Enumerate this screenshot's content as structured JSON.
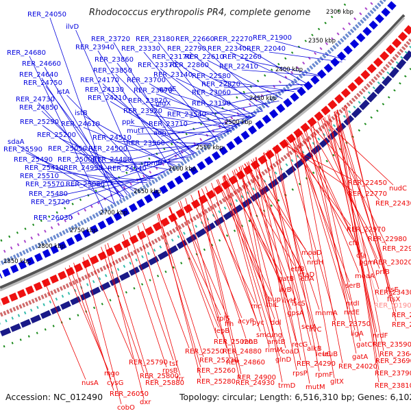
{
  "title": "Rhodococcus erythropolis PR4, complete genome",
  "accession": "Accession: NC_012490",
  "topology": "Topology: circular; Length: 6,516,310 bp; Genes: 6,102",
  "colors": {
    "forward": "#0000dd",
    "reverse": "#ee0000",
    "backbone": "#888888",
    "tick_dots": "#1a8a1a",
    "rna_label": "#ff8888"
  },
  "kbp_ticks": [
    "2300 kbp",
    "2350 kbp",
    "2400 kbp",
    "2450 kbp",
    "2500 kbp",
    "2550 kbp",
    "2600 kbp",
    "2650 kbp",
    "2700 kbp",
    "2750 kbp",
    "2800 kbp",
    "2850 kbp"
  ],
  "forward_labels": [
    "RER_24050",
    "ilvD",
    "RER_23720",
    "RER_23180",
    "RER_22660",
    "RER_22270",
    "RER_21900",
    "RER_23940",
    "RER_23330",
    "RER_22790",
    "RER_22340",
    "RER_22040",
    "RER_24680",
    "RER_23170",
    "RER_22610",
    "RER_22260",
    "RER_23860",
    "RER_24660",
    "RER_23370",
    "RER_22860",
    "RER_22410",
    "RER_23850",
    "RER_24640",
    "RER_23140",
    "RER_22580",
    "RER_24170",
    "RER_23700",
    "RER_24750",
    "RER_22820",
    "RER_24130",
    "nadE",
    "RER_23670",
    "istA",
    "RER_23060",
    "RER_24210",
    "RER_24730",
    "RER_23820",
    "glgX",
    "RER_23190",
    "RER_24850",
    "istB",
    "RER_23920",
    "RER_23540",
    "ppk",
    "RER_25290",
    "RER_24610",
    "RER_23710",
    "mutT",
    "adh",
    "sdaA",
    "RER_25200",
    "RER_24510",
    "RER_23960",
    "RER_25590",
    "RER_25050",
    "RER_24500",
    "rpmB",
    "RER_25490",
    "RER_25000",
    "RER_24480",
    "RER_25410",
    "RER_24990",
    "RER_24540",
    "RER_25510",
    "RER_25570",
    "RER_25080",
    "RER_25480",
    "RER_25720",
    "RER_26030"
  ],
  "reverse_labels": [
    "RER_22450",
    "nudC",
    "RER_22770",
    "RER_22430",
    "RER_22970",
    "RER_22980",
    "cfa",
    "RER_22990",
    "moaD",
    "cfa",
    "nrdH",
    "pgm",
    "RER_23020",
    "prfB",
    "etfB",
    "ctaD",
    "moaA",
    "gatB",
    "etfA",
    "serB",
    "ftsE",
    "ilvB",
    "RER_23430",
    "ftsX",
    "hup",
    "nrdI",
    "RER_t0190",
    "ilvH",
    "iscS",
    "RER_23360",
    "rnc",
    "thiL",
    "gpsA",
    "mnmA",
    "nrdE",
    "RER_23450",
    "rplS",
    "ffh",
    "pyc",
    "RER_23750",
    "ilvC",
    "ligA",
    "nrdF",
    "acyP",
    "ddl",
    "serA",
    "RER_23590",
    "lepB",
    "smc",
    "ung",
    "gatC",
    "RER_23640",
    "RER_25020",
    "rnhB",
    "amtB",
    "recG",
    "RER_25250",
    "RER_24880",
    "rimM",
    "coaD",
    "alkB",
    "RER_23690",
    "RER_25230",
    "RER_24860",
    "glnD",
    "gatA",
    "RER_25790",
    "tsf",
    "leuC",
    "RER_24290",
    "RER_24020",
    "mgo",
    "RER_25800",
    "rpsB",
    "RER_25260",
    "rpsP",
    "rpmF",
    "RER_23790",
    "nusA",
    "cysG",
    "RER_25880",
    "frr",
    "RER_24900",
    "RER_25280",
    "RER_24930",
    "trmD",
    "mutM",
    "gltX",
    "RER_23810",
    "RER_26050",
    "cobO",
    "dxr",
    "map"
  ],
  "unassigned_labels": [
    "leuB"
  ]
}
